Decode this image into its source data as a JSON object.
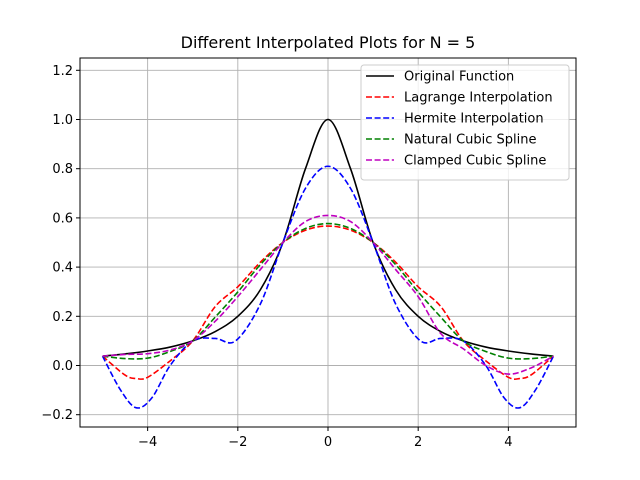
{
  "chart_data": {
    "type": "line",
    "title": "Different Interpolated Plots for N = 5",
    "xlabel": "",
    "ylabel": "",
    "xlim": [
      -5.5,
      5.5
    ],
    "ylim": [
      -0.25,
      1.25
    ],
    "xticks": [
      -4,
      -2,
      0,
      2,
      4
    ],
    "xtick_labels": [
      "−4",
      "−2",
      "0",
      "2",
      "4"
    ],
    "yticks": [
      -0.2,
      0.0,
      0.2,
      0.4,
      0.6,
      0.8,
      1.0,
      1.2
    ],
    "ytick_labels": [
      "−0.2",
      "0.0",
      "0.2",
      "0.4",
      "0.6",
      "0.8",
      "1.0",
      "1.2"
    ],
    "grid": true,
    "legend_position": "top-right",
    "nodes_x": [
      -5,
      -3,
      -1,
      1,
      3,
      5
    ],
    "series": [
      {
        "name": "Original Function",
        "color": "#000000",
        "dashed": false,
        "x": [
          -5,
          -4.5,
          -4,
          -3.5,
          -3,
          -2.5,
          -2,
          -1.5,
          -1,
          -0.5,
          0,
          0.5,
          1,
          1.5,
          2,
          2.5,
          3,
          3.5,
          4,
          4.5,
          5
        ],
        "y": [
          0.038,
          0.047,
          0.059,
          0.075,
          0.1,
          0.138,
          0.2,
          0.308,
          0.5,
          0.8,
          1.0,
          0.8,
          0.5,
          0.308,
          0.2,
          0.138,
          0.1,
          0.075,
          0.059,
          0.047,
          0.038
        ]
      },
      {
        "name": "Lagrange Interpolation",
        "color": "#ff0000",
        "dashed": true,
        "x": [
          -5,
          -4.5,
          -4.25,
          -4,
          -3.5,
          -3,
          -2.5,
          -2,
          -1.5,
          -1,
          -0.5,
          0,
          0.5,
          1,
          1.5,
          2,
          2.5,
          3,
          3.5,
          4,
          4.25,
          4.5,
          5
        ],
        "y": [
          0.038,
          -0.039,
          -0.053,
          -0.048,
          0.019,
          0.1,
          0.24,
          0.32,
          0.42,
          0.5,
          0.55,
          0.567,
          0.55,
          0.5,
          0.42,
          0.32,
          0.24,
          0.1,
          0.019,
          -0.048,
          -0.053,
          -0.039,
          0.038
        ]
      },
      {
        "name": "Hermite Interpolation",
        "color": "#0000ff",
        "dashed": true,
        "x": [
          -5,
          -4.6,
          -4.25,
          -3.9,
          -3.5,
          -3,
          -2.5,
          -2.05,
          -1.5,
          -1,
          -0.5,
          0,
          0.5,
          1,
          1.5,
          2.05,
          2.5,
          3,
          3.5,
          3.9,
          4.25,
          4.6,
          5
        ],
        "y": [
          0.038,
          -0.1,
          -0.172,
          -0.13,
          0.0,
          0.1,
          0.11,
          0.1,
          0.25,
          0.5,
          0.72,
          0.81,
          0.72,
          0.5,
          0.25,
          0.1,
          0.11,
          0.1,
          0.0,
          -0.13,
          -0.172,
          -0.1,
          0.038
        ]
      },
      {
        "name": "Natural Cubic Spline",
        "color": "#008000",
        "dashed": true,
        "x": [
          -5,
          -4.5,
          -4,
          -3.5,
          -3,
          -2.5,
          -2,
          -1.5,
          -1,
          -0.5,
          0,
          0.5,
          1,
          1.5,
          2,
          2.5,
          3,
          3.5,
          4,
          4.5,
          5
        ],
        "y": [
          0.038,
          0.028,
          0.03,
          0.057,
          0.1,
          0.197,
          0.299,
          0.41,
          0.5,
          0.557,
          0.577,
          0.557,
          0.5,
          0.41,
          0.299,
          0.197,
          0.1,
          0.057,
          0.03,
          0.028,
          0.038
        ]
      },
      {
        "name": "Clamped Cubic Spline",
        "color": "#bf00bf",
        "dashed": true,
        "x": [
          -5,
          -4.5,
          -4,
          -3.5,
          -3,
          -2.5,
          -2,
          -1.5,
          -1,
          -0.5,
          0,
          0.5,
          1,
          1.5,
          2,
          2.5,
          3,
          3.5,
          4,
          4.5,
          5
        ],
        "y": [
          0.038,
          0.045,
          0.048,
          0.063,
          0.1,
          0.18,
          0.28,
          0.39,
          0.5,
          0.585,
          0.61,
          0.585,
          0.5,
          0.39,
          0.28,
          0.13,
          0.068,
          0.0,
          -0.035,
          -0.01,
          0.038
        ]
      }
    ]
  }
}
